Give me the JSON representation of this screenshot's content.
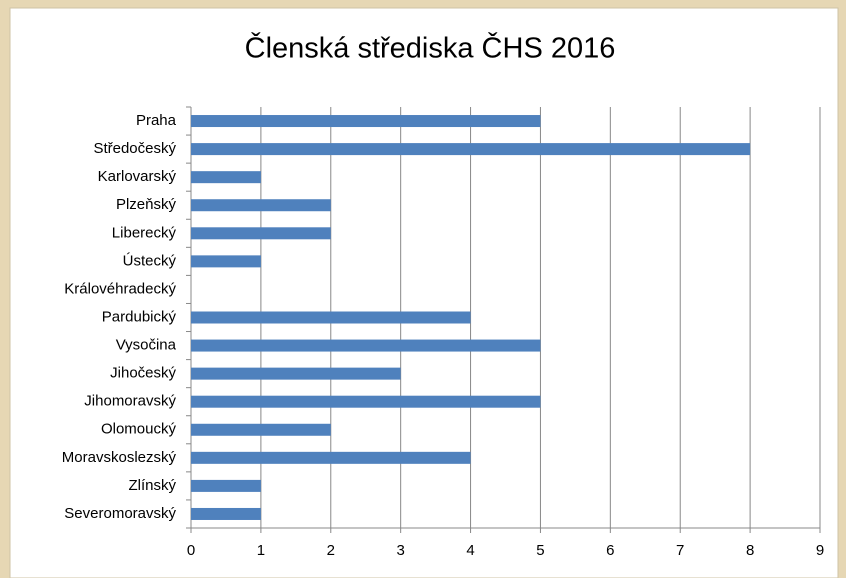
{
  "chart_data": {
    "type": "bar",
    "orientation": "horizontal",
    "title": "Členská střediska ČHS 2016",
    "categories": [
      "Praha",
      "Středočeský",
      "Karlovarský",
      "Plzeňský",
      "Liberecký",
      "Ústecký",
      "Královéhradecký",
      "Pardubický",
      "Vysočina",
      "Jihočeský",
      "Jihomoravský",
      "Olomoucký",
      "Moravskoslezský",
      "Zlínský",
      "Severomoravský"
    ],
    "values": [
      5,
      8,
      1,
      2,
      2,
      1,
      0,
      4,
      5,
      3,
      5,
      2,
      4,
      1,
      1
    ],
    "color": "#4f81bd",
    "xlim": [
      0,
      9
    ],
    "xticks": [
      0,
      1,
      2,
      3,
      4,
      5,
      6,
      7,
      8,
      9
    ],
    "grid": true
  }
}
